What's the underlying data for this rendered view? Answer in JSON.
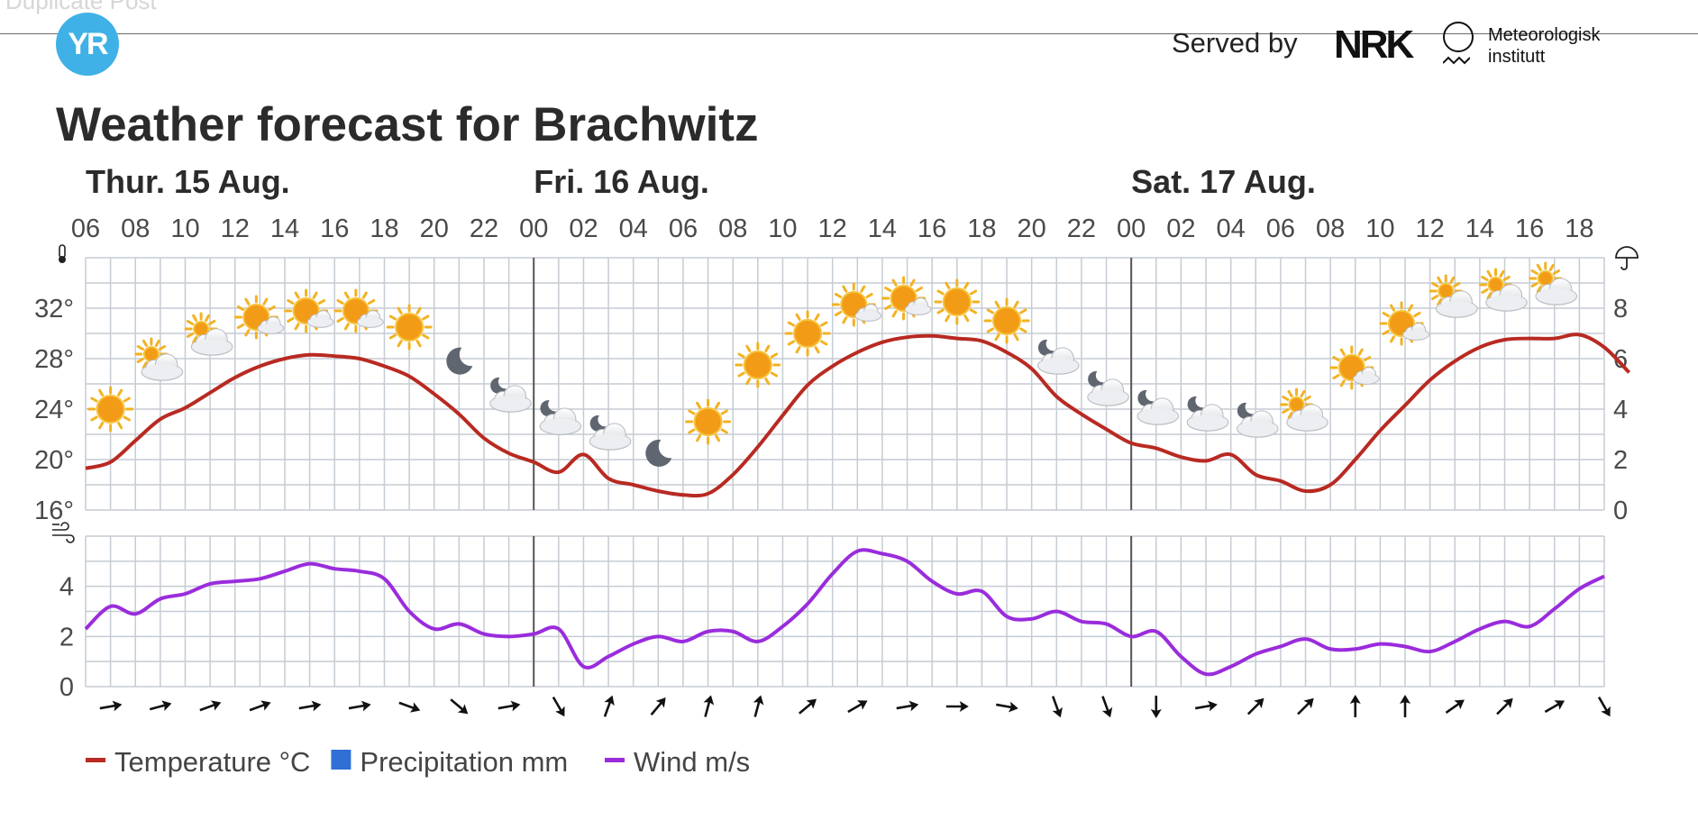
{
  "header": {
    "ghost_text": "Duplicate Post",
    "logo_text": "YR",
    "served_by": "Served by",
    "nrk_logo": "NRK",
    "met_logo_line1": "Meteorologisk",
    "met_logo_line2": "institutt"
  },
  "title": "Weather forecast for Brachwitz",
  "chart_data": {
    "type": "line",
    "days": [
      {
        "label": "Thur. 15 Aug.",
        "start_hour": 6
      },
      {
        "label": "Fri. 16 Aug.",
        "start_hour": 24
      },
      {
        "label": "Sat. 17 Aug.",
        "start_hour": 48
      }
    ],
    "hour_ticks": [
      "06",
      "08",
      "10",
      "12",
      "14",
      "16",
      "18",
      "20",
      "22",
      "00",
      "02",
      "04",
      "06",
      "08",
      "10",
      "12",
      "14",
      "16",
      "18",
      "20",
      "22",
      "00",
      "02",
      "04",
      "06",
      "08",
      "10",
      "12",
      "14",
      "16",
      "18"
    ],
    "x_range_hours": [
      6,
      67
    ],
    "temperature_axis": {
      "labels": [
        "32°",
        "28°",
        "24°",
        "20°",
        "16°"
      ],
      "values": [
        32,
        28,
        24,
        20,
        16
      ],
      "range": [
        16,
        36
      ]
    },
    "precip_axis": {
      "labels": [
        "8",
        "6",
        "4",
        "2",
        "0"
      ],
      "values": [
        8,
        6,
        4,
        2,
        0
      ],
      "range": [
        0,
        10
      ]
    },
    "wind_axis": {
      "labels": [
        "4",
        "2",
        "0"
      ],
      "values": [
        4,
        2,
        0
      ],
      "range": [
        0,
        6
      ]
    },
    "series": [
      {
        "name": "Temperature °C",
        "color": "#b82a22",
        "points": [
          [
            6,
            19.3
          ],
          [
            7,
            19.8
          ],
          [
            8,
            21.5
          ],
          [
            9,
            23.2
          ],
          [
            10,
            24.1
          ],
          [
            11,
            25.3
          ],
          [
            12,
            26.5
          ],
          [
            13,
            27.4
          ],
          [
            14,
            28.0
          ],
          [
            15,
            28.3
          ],
          [
            16,
            28.2
          ],
          [
            17,
            28.0
          ],
          [
            18,
            27.4
          ],
          [
            19,
            26.6
          ],
          [
            20,
            25.2
          ],
          [
            21,
            23.6
          ],
          [
            22,
            21.7
          ],
          [
            23,
            20.5
          ],
          [
            24,
            19.8
          ],
          [
            25,
            19.0
          ],
          [
            26,
            20.4
          ],
          [
            27,
            18.5
          ],
          [
            28,
            18.0
          ],
          [
            29,
            17.5
          ],
          [
            30,
            17.2
          ],
          [
            31,
            17.3
          ],
          [
            32,
            18.8
          ],
          [
            33,
            21.0
          ],
          [
            34,
            23.5
          ],
          [
            35,
            25.9
          ],
          [
            36,
            27.4
          ],
          [
            37,
            28.5
          ],
          [
            38,
            29.3
          ],
          [
            39,
            29.7
          ],
          [
            40,
            29.8
          ],
          [
            41,
            29.6
          ],
          [
            42,
            29.4
          ],
          [
            43,
            28.5
          ],
          [
            44,
            27.2
          ],
          [
            45,
            25.0
          ],
          [
            46,
            23.6
          ],
          [
            47,
            22.4
          ],
          [
            48,
            21.3
          ],
          [
            49,
            20.9
          ],
          [
            50,
            20.2
          ],
          [
            51,
            19.9
          ],
          [
            52,
            20.4
          ],
          [
            53,
            18.8
          ],
          [
            54,
            18.3
          ],
          [
            55,
            17.5
          ],
          [
            56,
            18.0
          ],
          [
            57,
            20.0
          ],
          [
            58,
            22.3
          ],
          [
            59,
            24.3
          ],
          [
            60,
            26.3
          ],
          [
            61,
            27.8
          ],
          [
            62,
            28.9
          ],
          [
            63,
            29.5
          ],
          [
            64,
            29.6
          ],
          [
            65,
            29.6
          ],
          [
            66,
            29.9
          ],
          [
            67,
            28.9
          ],
          [
            68,
            26.9
          ]
        ]
      },
      {
        "name": "Precipitation mm",
        "color": "#2f6fd6",
        "points": []
      },
      {
        "name": "Wind m/s",
        "color": "#9a2cdc",
        "points": [
          [
            6,
            2.3
          ],
          [
            7,
            3.2
          ],
          [
            8,
            2.9
          ],
          [
            9,
            3.5
          ],
          [
            10,
            3.7
          ],
          [
            11,
            4.1
          ],
          [
            12,
            4.2
          ],
          [
            13,
            4.3
          ],
          [
            14,
            4.6
          ],
          [
            15,
            4.9
          ],
          [
            16,
            4.7
          ],
          [
            17,
            4.6
          ],
          [
            18,
            4.3
          ],
          [
            19,
            3.0
          ],
          [
            20,
            2.3
          ],
          [
            21,
            2.5
          ],
          [
            22,
            2.1
          ],
          [
            23,
            2.0
          ],
          [
            24,
            2.1
          ],
          [
            25,
            2.3
          ],
          [
            26,
            0.8
          ],
          [
            27,
            1.2
          ],
          [
            28,
            1.7
          ],
          [
            29,
            2.0
          ],
          [
            30,
            1.8
          ],
          [
            31,
            2.2
          ],
          [
            32,
            2.2
          ],
          [
            33,
            1.8
          ],
          [
            34,
            2.4
          ],
          [
            35,
            3.3
          ],
          [
            36,
            4.5
          ],
          [
            37,
            5.4
          ],
          [
            38,
            5.3
          ],
          [
            39,
            5.0
          ],
          [
            40,
            4.2
          ],
          [
            41,
            3.7
          ],
          [
            42,
            3.8
          ],
          [
            43,
            2.8
          ],
          [
            44,
            2.7
          ],
          [
            45,
            3.0
          ],
          [
            46,
            2.6
          ],
          [
            47,
            2.5
          ],
          [
            48,
            2.0
          ],
          [
            49,
            2.2
          ],
          [
            50,
            1.2
          ],
          [
            51,
            0.5
          ],
          [
            52,
            0.8
          ],
          [
            53,
            1.3
          ],
          [
            54,
            1.6
          ],
          [
            55,
            1.9
          ],
          [
            56,
            1.5
          ],
          [
            57,
            1.5
          ],
          [
            58,
            1.7
          ],
          [
            59,
            1.6
          ],
          [
            60,
            1.4
          ],
          [
            61,
            1.8
          ],
          [
            62,
            2.3
          ],
          [
            63,
            2.6
          ],
          [
            64,
            2.4
          ],
          [
            65,
            3.1
          ],
          [
            66,
            3.9
          ],
          [
            67,
            4.4
          ]
        ]
      }
    ],
    "weather_symbols": [
      {
        "hour": 7,
        "temp": 24.0,
        "icon": "sun"
      },
      {
        "hour": 9,
        "temp": 27.5,
        "icon": "partly-cloudy-day"
      },
      {
        "hour": 11,
        "temp": 29.5,
        "icon": "partly-cloudy-day"
      },
      {
        "hour": 13,
        "temp": 31.0,
        "icon": "sun-with-cloud"
      },
      {
        "hour": 15,
        "temp": 31.5,
        "icon": "sun-with-cloud"
      },
      {
        "hour": 17,
        "temp": 31.5,
        "icon": "sun-with-cloud"
      },
      {
        "hour": 19,
        "temp": 30.5,
        "icon": "sun"
      },
      {
        "hour": 21,
        "temp": 27.8,
        "icon": "moon"
      },
      {
        "hour": 23,
        "temp": 25.0,
        "icon": "partly-cloudy-night"
      },
      {
        "hour": 25,
        "temp": 23.2,
        "icon": "partly-cloudy-night"
      },
      {
        "hour": 27,
        "temp": 22.0,
        "icon": "partly-cloudy-night"
      },
      {
        "hour": 29,
        "temp": 20.5,
        "icon": "moon"
      },
      {
        "hour": 31,
        "temp": 23.0,
        "icon": "sun"
      },
      {
        "hour": 33,
        "temp": 27.5,
        "icon": "sun"
      },
      {
        "hour": 35,
        "temp": 30.0,
        "icon": "sun"
      },
      {
        "hour": 37,
        "temp": 32.0,
        "icon": "sun-with-cloud"
      },
      {
        "hour": 39,
        "temp": 32.5,
        "icon": "sun-with-cloud"
      },
      {
        "hour": 41,
        "temp": 32.5,
        "icon": "sun"
      },
      {
        "hour": 43,
        "temp": 31.0,
        "icon": "sun"
      },
      {
        "hour": 45,
        "temp": 28.0,
        "icon": "partly-cloudy-night"
      },
      {
        "hour": 47,
        "temp": 25.5,
        "icon": "partly-cloudy-night"
      },
      {
        "hour": 49,
        "temp": 24.0,
        "icon": "partly-cloudy-night"
      },
      {
        "hour": 51,
        "temp": 23.5,
        "icon": "partly-cloudy-night"
      },
      {
        "hour": 53,
        "temp": 23.0,
        "icon": "partly-cloudy-night"
      },
      {
        "hour": 55,
        "temp": 23.5,
        "icon": "partly-cloudy-day"
      },
      {
        "hour": 57,
        "temp": 27.0,
        "icon": "sun-with-cloud"
      },
      {
        "hour": 59,
        "temp": 30.5,
        "icon": "sun-with-cloud"
      },
      {
        "hour": 61,
        "temp": 32.5,
        "icon": "partly-cloudy-day"
      },
      {
        "hour": 63,
        "temp": 33.0,
        "icon": "partly-cloudy-day"
      },
      {
        "hour": 65,
        "temp": 33.5,
        "icon": "partly-cloudy-day"
      }
    ],
    "wind_directions_deg": [
      80,
      75,
      70,
      70,
      80,
      80,
      110,
      130,
      80,
      150,
      20,
      40,
      15,
      15,
      50,
      60,
      80,
      90,
      100,
      160,
      160,
      180,
      80,
      45,
      45,
      0,
      0,
      55,
      45,
      60,
      150
    ],
    "legend": [
      {
        "label": "Temperature °C",
        "color": "#b82a22",
        "type": "line"
      },
      {
        "label": "Precipitation mm",
        "color": "#2f6fd6",
        "type": "box"
      },
      {
        "label": "Wind m/s",
        "color": "#9a2cdc",
        "type": "line"
      }
    ],
    "grid": true
  }
}
